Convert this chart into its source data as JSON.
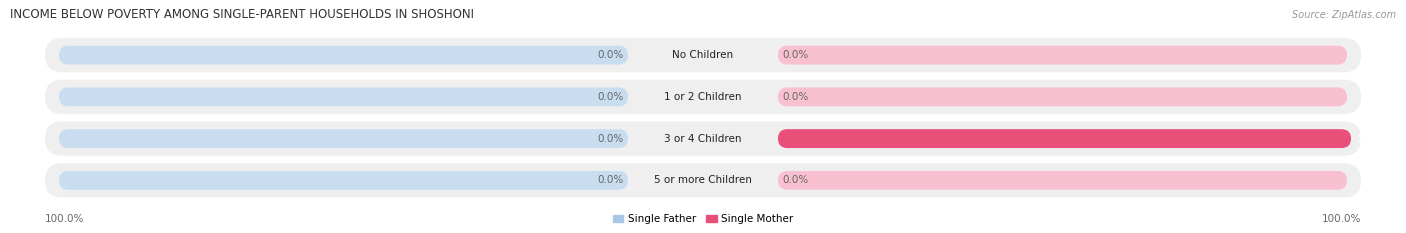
{
  "title": "INCOME BELOW POVERTY AMONG SINGLE-PARENT HOUSEHOLDS IN SHOSHONI",
  "source": "Source: ZipAtlas.com",
  "categories": [
    "No Children",
    "1 or 2 Children",
    "3 or 4 Children",
    "5 or more Children"
  ],
  "single_father": [
    0.0,
    0.0,
    0.0,
    0.0
  ],
  "single_mother": [
    0.0,
    0.0,
    100.0,
    0.0
  ],
  "father_color": "#a8c8e8",
  "mother_color": "#f090b0",
  "mother_color_full": "#e8507a",
  "bg_row_color": "#efefef",
  "bar_bg_father": "#c8ddf0",
  "bar_bg_mother": "#f8c0d0",
  "legend_labels": [
    "Single Father",
    "Single Mother"
  ],
  "axis_label_left": "100.0%",
  "axis_label_right": "100.0%",
  "title_fontsize": 8.5,
  "label_fontsize": 7.5,
  "source_fontsize": 7,
  "value_color": "#666666"
}
